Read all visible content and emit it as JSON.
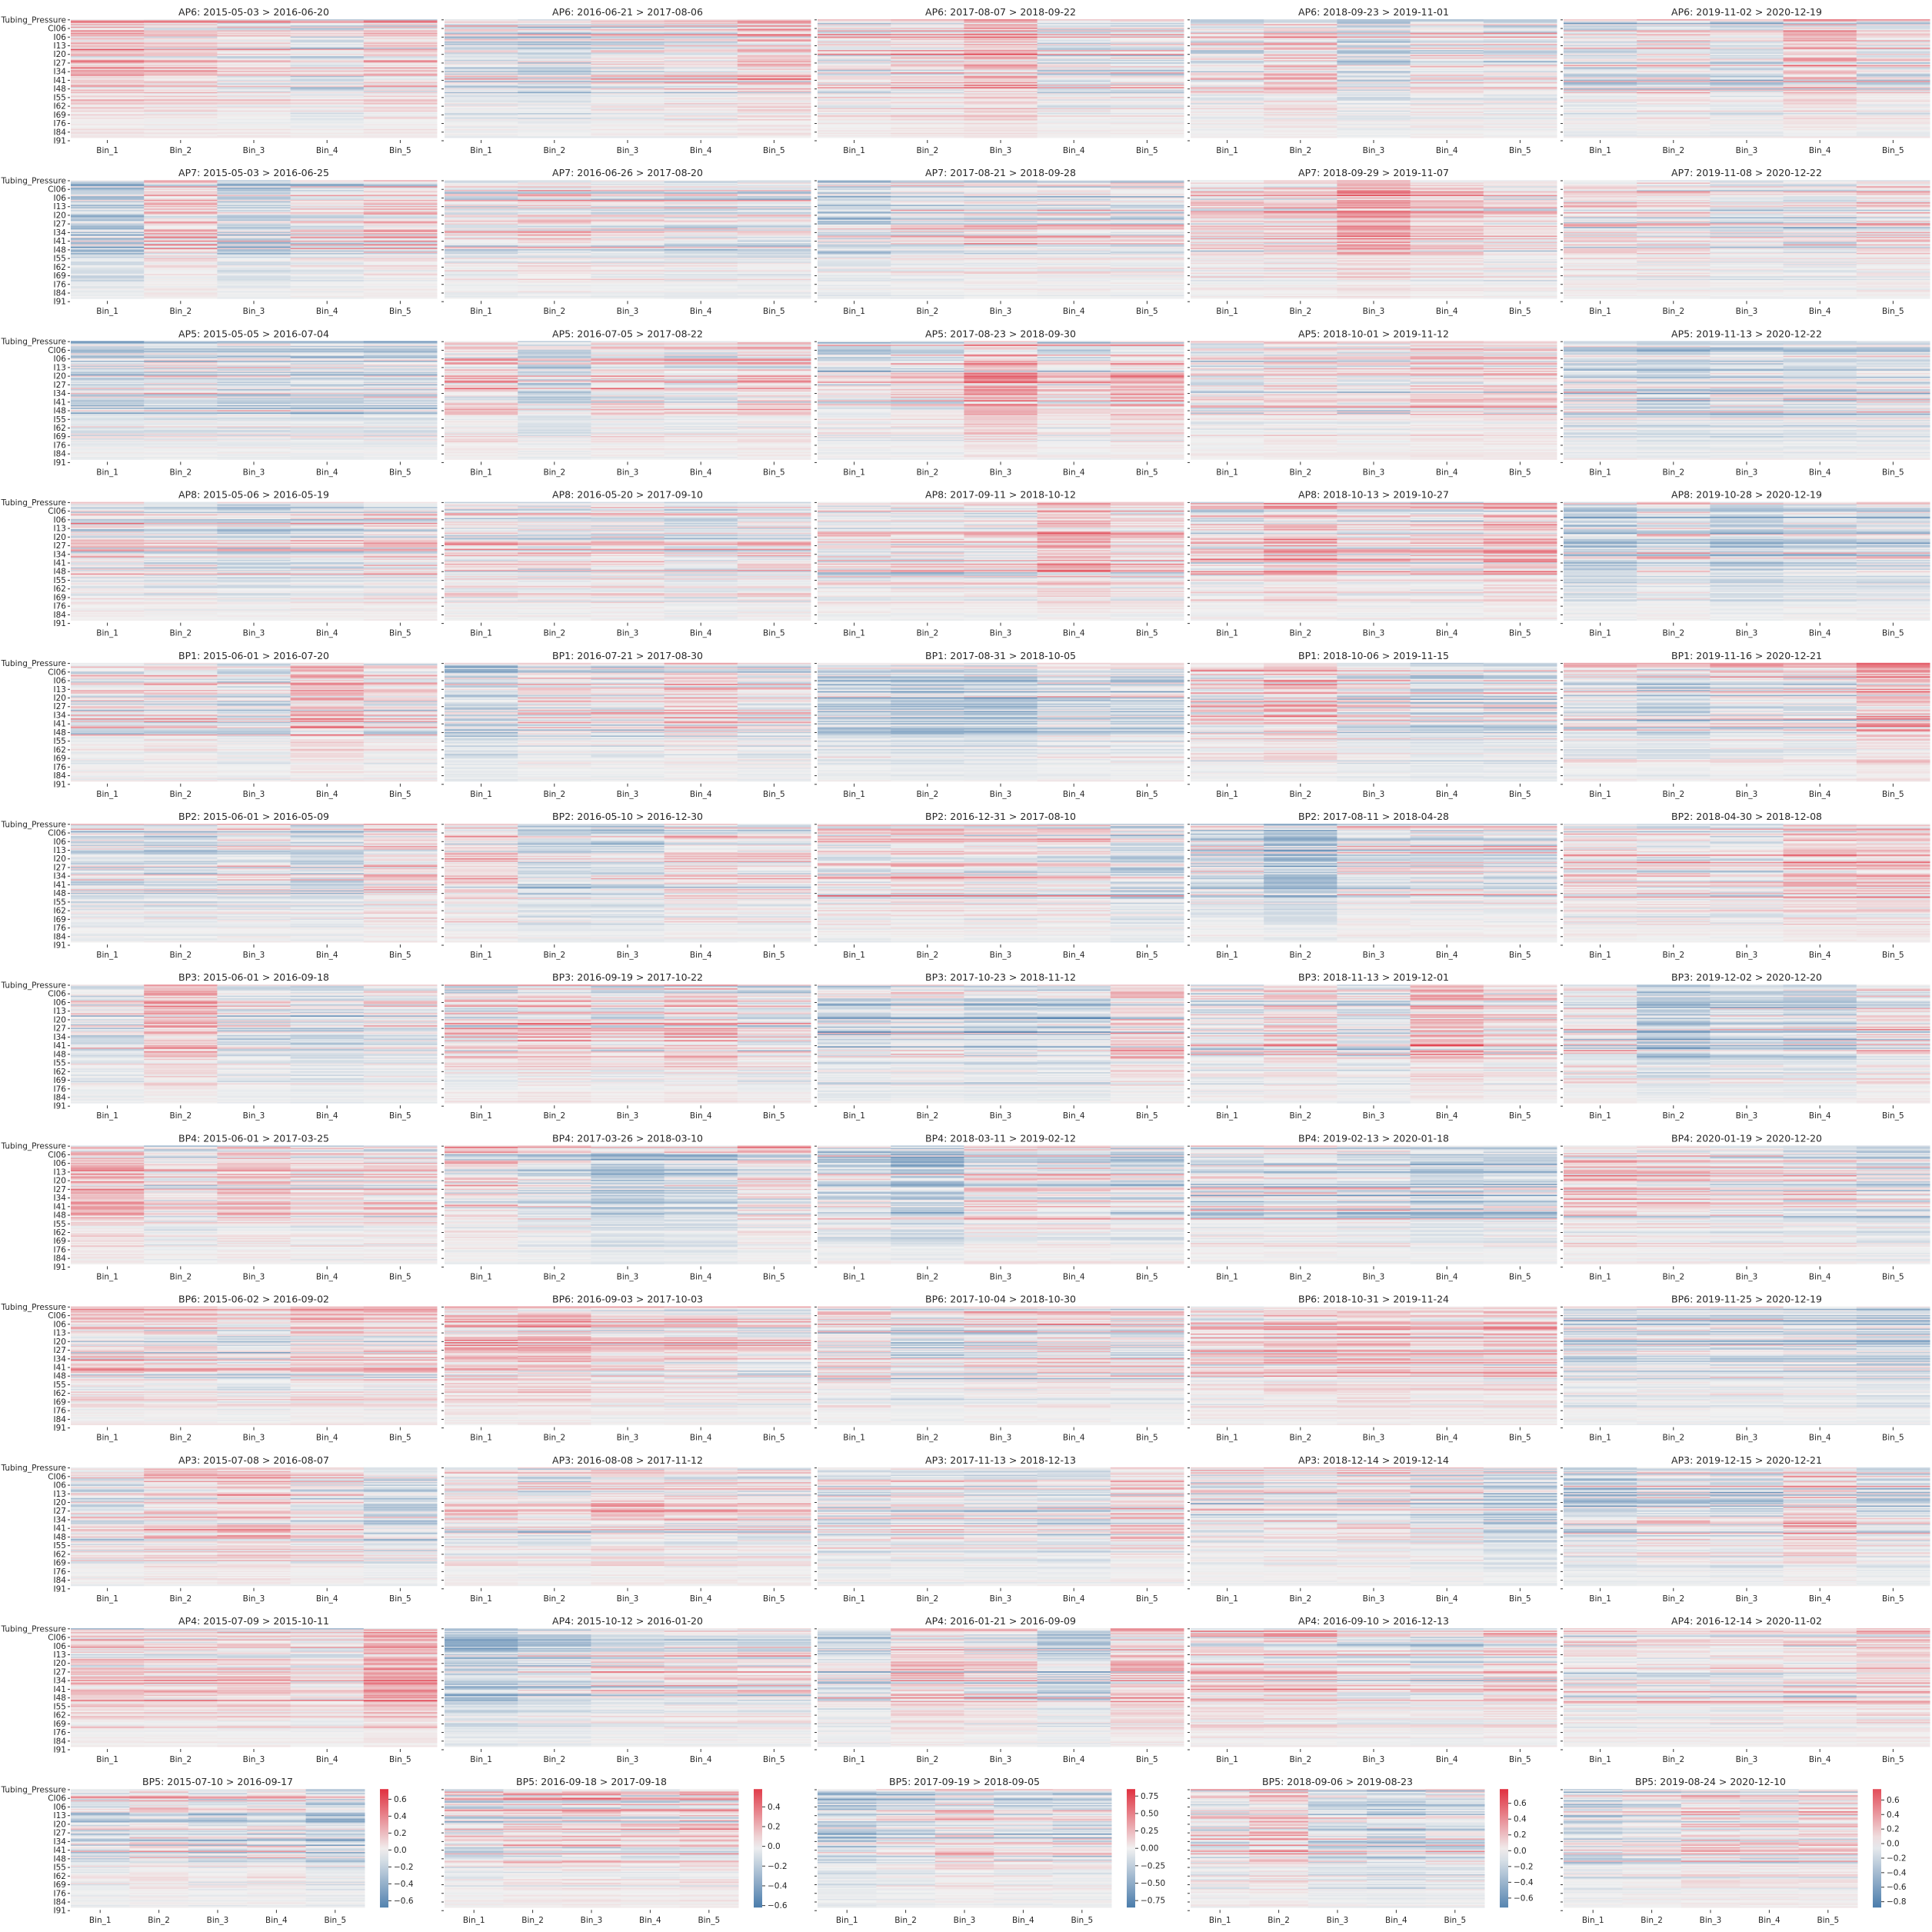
{
  "figure": {
    "rows": 12,
    "cols": 5,
    "colormap": {
      "negative": "#4a7cab",
      "center": "#f1f1f1",
      "positive": "#e0303f"
    }
  },
  "chart_data": {
    "type": "heatmap",
    "x_categories": [
      "Bin_1",
      "Bin_2",
      "Bin_3",
      "Bin_4",
      "Bin_5"
    ],
    "y_tick_labels": [
      "Tubing_Pressure",
      "CI06",
      "I06",
      "I13",
      "I20",
      "I27",
      "I34",
      "I41",
      "I48",
      "I55",
      "I62",
      "I69",
      "I76",
      "I84",
      "I91"
    ],
    "panels": [
      [
        "AP6: 2015-05-03 > 2016-06-20",
        "AP6: 2016-06-21 > 2017-08-06",
        "AP6: 2017-08-07 > 2018-09-22",
        "AP6: 2018-09-23 > 2019-11-01",
        "AP6: 2019-11-02 > 2020-12-19"
      ],
      [
        "AP7: 2015-05-03 > 2016-06-25",
        "AP7: 2016-06-26 > 2017-08-20",
        "AP7: 2017-08-21 > 2018-09-28",
        "AP7: 2018-09-29 > 2019-11-07",
        "AP7: 2019-11-08 > 2020-12-22"
      ],
      [
        "AP5: 2015-05-05 > 2016-07-04",
        "AP5: 2016-07-05 > 2017-08-22",
        "AP5: 2017-08-23 > 2018-09-30",
        "AP5: 2018-10-01 > 2019-11-12",
        "AP5: 2019-11-13 > 2020-12-22"
      ],
      [
        "AP8: 2015-05-06 > 2016-05-19",
        "AP8: 2016-05-20 > 2017-09-10",
        "AP8: 2017-09-11 > 2018-10-12",
        "AP8: 2018-10-13 > 2019-10-27",
        "AP8: 2019-10-28 > 2020-12-19"
      ],
      [
        "BP1: 2015-06-01 > 2016-07-20",
        "BP1: 2016-07-21 > 2017-08-30",
        "BP1: 2017-08-31 > 2018-10-05",
        "BP1: 2018-10-06 > 2019-11-15",
        "BP1: 2019-11-16 > 2020-12-21"
      ],
      [
        "BP2: 2015-06-01 > 2016-05-09",
        "BP2: 2016-05-10 > 2016-12-30",
        "BP2: 2016-12-31 > 2017-08-10",
        "BP2: 2017-08-11 > 2018-04-28",
        "BP2: 2018-04-30 > 2018-12-08"
      ],
      [
        "BP3: 2015-06-01 > 2016-09-18",
        "BP3: 2016-09-19 > 2017-10-22",
        "BP3: 2017-10-23 > 2018-11-12",
        "BP3: 2018-11-13 > 2019-12-01",
        "BP3: 2019-12-02 > 2020-12-20"
      ],
      [
        "BP4: 2015-06-01 > 2017-03-25",
        "BP4: 2017-03-26 > 2018-03-10",
        "BP4: 2018-03-11 > 2019-02-12",
        "BP4: 2019-02-13 > 2020-01-18",
        "BP4: 2020-01-19 > 2020-12-20"
      ],
      [
        "BP6: 2015-06-02 > 2016-09-02",
        "BP6: 2016-09-03 > 2017-10-03",
        "BP6: 2017-10-04 > 2018-10-30",
        "BP6: 2018-10-31 > 2019-11-24",
        "BP6: 2019-11-25 > 2020-12-19"
      ],
      [
        "AP3: 2015-07-08 > 2016-08-07",
        "AP3: 2016-08-08 > 2017-11-12",
        "AP3: 2017-11-13 > 2018-12-13",
        "AP3: 2018-12-14 > 2019-12-14",
        "AP3: 2019-12-15 > 2020-12-21"
      ],
      [
        "AP4: 2015-07-09 > 2015-10-11",
        "AP4: 2015-10-12 > 2016-01-20",
        "AP4: 2016-01-21 > 2016-09-09",
        "AP4: 2016-09-10 > 2016-12-13",
        "AP4: 2016-12-14 > 2020-11-02"
      ],
      [
        "BP5: 2015-07-10 > 2016-09-17",
        "BP5: 2016-09-18 > 2017-09-18",
        "BP5: 2017-09-19 > 2018-09-05",
        "BP5: 2018-09-06 > 2019-08-23",
        "BP5: 2019-08-24 > 2020-12-10"
      ]
    ],
    "colorbars": [
      {
        "min": -0.68,
        "max": 0.72,
        "ticks": [
          0.6,
          0.4,
          0.2,
          0.0,
          -0.2,
          -0.4,
          -0.6
        ],
        "tick_labels": [
          "0.6",
          "0.4",
          "0.2",
          "0.0",
          "−0.2",
          "−0.4",
          "−0.6"
        ]
      },
      {
        "min": -0.62,
        "max": 0.58,
        "ticks": [
          0.4,
          0.2,
          0.0,
          -0.2,
          -0.4,
          -0.6
        ],
        "tick_labels": [
          "0.4",
          "0.2",
          "0.0",
          "−0.2",
          "−0.4",
          "−0.6"
        ]
      },
      {
        "min": -0.85,
        "max": 0.85,
        "ticks": [
          0.75,
          0.5,
          0.25,
          0.0,
          -0.25,
          -0.5,
          -0.75
        ],
        "tick_labels": [
          "0.75",
          "0.50",
          "0.25",
          "0.00",
          "−0.25",
          "−0.50",
          "−0.75"
        ]
      },
      {
        "min": -0.72,
        "max": 0.78,
        "ticks": [
          0.6,
          0.4,
          0.2,
          0.0,
          -0.2,
          -0.4,
          -0.6
        ],
        "tick_labels": [
          "0.6",
          "0.4",
          "0.2",
          "0.0",
          "−0.2",
          "−0.4",
          "−0.6"
        ]
      },
      {
        "min": -0.88,
        "max": 0.75,
        "ticks": [
          0.6,
          0.4,
          0.2,
          0.0,
          -0.2,
          -0.4,
          -0.6,
          -0.8
        ],
        "tick_labels": [
          "0.6",
          "0.4",
          "0.2",
          "0.0",
          "−0.2",
          "−0.4",
          "−0.6",
          "−0.8"
        ]
      }
    ]
  }
}
